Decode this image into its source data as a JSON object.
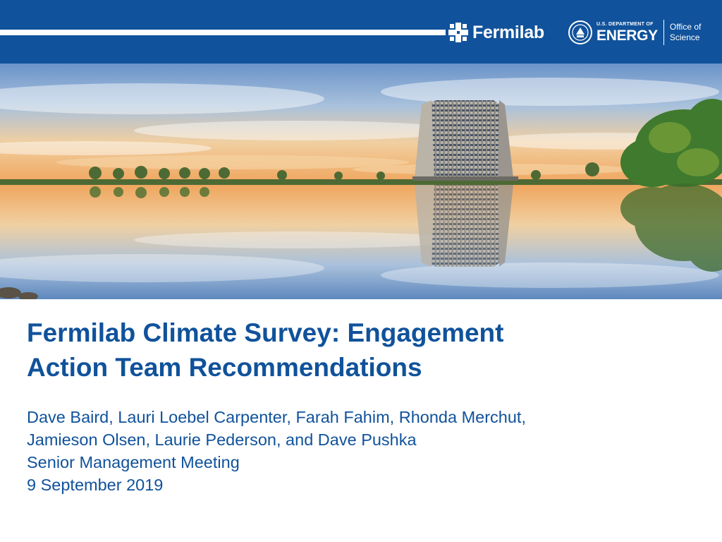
{
  "header": {
    "logo_name": "Fermilab",
    "doe_small": "U.S. DEPARTMENT OF",
    "doe_big": "ENERGY",
    "office_line1": "Office of",
    "office_line2": "Science"
  },
  "slide": {
    "title_line1": "Fermilab Climate Survey: Engagement",
    "title_line2": "Action Team Recommendations",
    "authors_line1": "Dave Baird, Lauri Loebel Carpenter, Farah Fahim, Rhonda Merchut,",
    "authors_line2": "Jamieson Olsen, Laurie Pederson, and Dave Pushka",
    "meeting": "Senior Management Meeting",
    "date": "9 September 2019"
  },
  "colors": {
    "brand_blue": "#10529b"
  }
}
